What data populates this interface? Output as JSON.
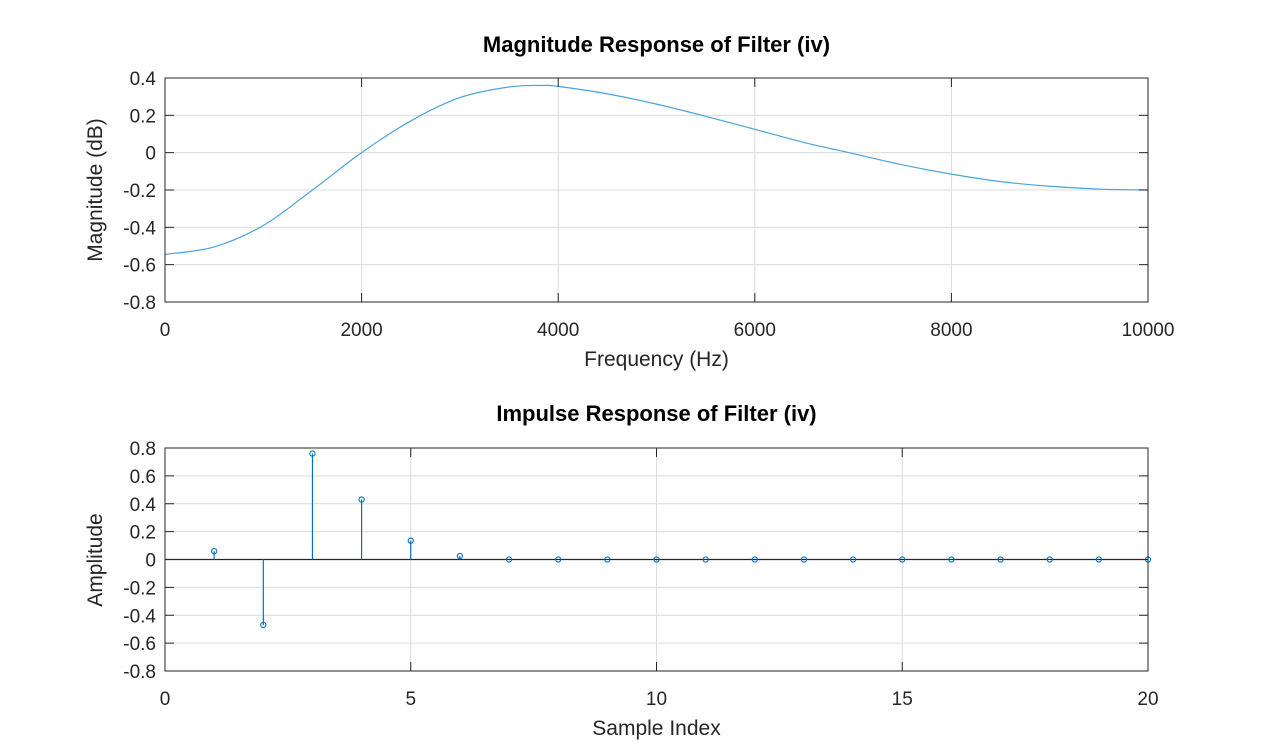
{
  "chart_data": [
    {
      "type": "line",
      "title": "Magnitude Response of Filter (iv)",
      "xlabel": "Frequency (Hz)",
      "ylabel": "Magnitude (dB)",
      "xlim": [
        0,
        10000
      ],
      "ylim": [
        -0.8,
        0.4
      ],
      "xticks": [
        0,
        2000,
        4000,
        6000,
        8000,
        10000
      ],
      "xtick_labels": [
        "0",
        "2000",
        "4000",
        "6000",
        "8000",
        "10000"
      ],
      "yticks": [
        -0.8,
        -0.6,
        -0.4,
        -0.2,
        0,
        0.2,
        0.4
      ],
      "ytick_labels": [
        "-0.8",
        "-0.6",
        "-0.4",
        "-0.2",
        "0",
        "0.2",
        "0.4"
      ],
      "grid": true,
      "color": "#4aa3d9",
      "x": [
        0,
        500,
        1000,
        1500,
        2000,
        2500,
        3000,
        3500,
        3850,
        4000,
        4500,
        5000,
        5500,
        6000,
        6500,
        7000,
        7500,
        8000,
        8500,
        9000,
        9500,
        10000
      ],
      "y": [
        -0.545,
        -0.505,
        -0.39,
        -0.2,
        0.0,
        0.17,
        0.295,
        0.352,
        0.36,
        0.355,
        0.315,
        0.26,
        0.195,
        0.125,
        0.055,
        -0.005,
        -0.065,
        -0.115,
        -0.155,
        -0.18,
        -0.195,
        -0.2
      ]
    },
    {
      "type": "stem",
      "title": "Impulse Response of Filter (iv)",
      "xlabel": "Sample Index",
      "ylabel": "Amplitude",
      "xlim": [
        0,
        20
      ],
      "ylim": [
        -0.8,
        0.8
      ],
      "xticks": [
        0,
        5,
        10,
        15,
        20
      ],
      "xtick_labels": [
        "0",
        "5",
        "10",
        "15",
        "20"
      ],
      "yticks": [
        -0.8,
        -0.6,
        -0.4,
        -0.2,
        0,
        0.2,
        0.4,
        0.6,
        0.8
      ],
      "ytick_labels": [
        "-0.8",
        "-0.6",
        "-0.4",
        "-0.2",
        "0",
        "0.2",
        "0.4",
        "0.6",
        "0.8"
      ],
      "grid": true,
      "color": "#0072bd",
      "x": [
        1,
        2,
        3,
        4,
        5,
        6,
        7,
        8,
        9,
        10,
        11,
        12,
        13,
        14,
        15,
        16,
        17,
        18,
        19,
        20
      ],
      "y": [
        0.06,
        -0.47,
        0.76,
        0.43,
        0.135,
        0.025,
        0,
        0,
        0,
        0,
        0,
        0,
        0,
        0,
        0,
        0,
        0,
        0,
        0,
        0
      ]
    }
  ]
}
